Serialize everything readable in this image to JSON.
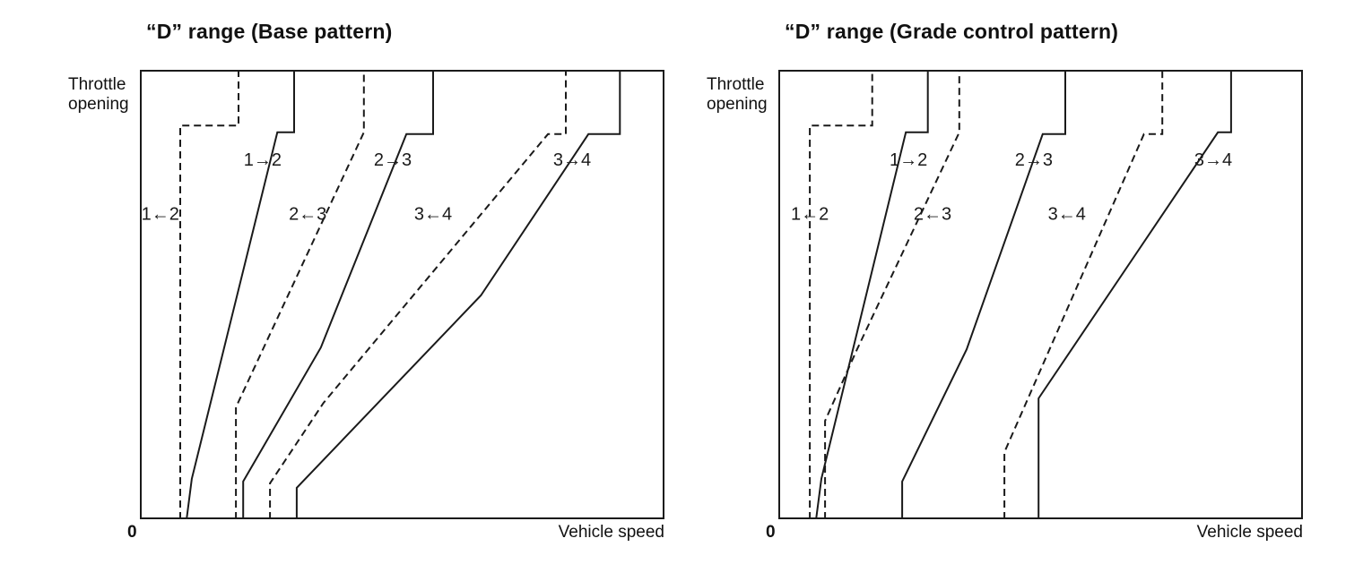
{
  "figure": {
    "description": "Automatic transmission shift schedule diagrams for D range",
    "line_color": "#1a1a1a",
    "background": "#ffffff"
  },
  "chart_data": [
    {
      "type": "line",
      "title": "“D” range (Base pattern)",
      "xlabel": "Vehicle speed",
      "ylabel": "Throttle opening",
      "origin_label": "0",
      "x_range": [
        0,
        100
      ],
      "y_range": [
        0,
        100
      ],
      "grid": false,
      "legend": "none",
      "coord_note": "points are [vehicle_speed 0-100, throttle_opening 0-100], axes unlabeled in source",
      "series": [
        {
          "id": "downshift-1-2",
          "name": "1←2 downshift",
          "style": "dashed",
          "points": [
            [
              7.7,
              0
            ],
            [
              7.7,
              87.6
            ],
            [
              18.8,
              87.6
            ],
            [
              18.8,
              100
            ]
          ]
        },
        {
          "id": "upshift-1-2",
          "name": "1→2 upshift",
          "style": "solid",
          "points": [
            [
              8.9,
              0
            ],
            [
              9.9,
              9.0
            ],
            [
              26.2,
              86.1
            ],
            [
              29.4,
              86.1
            ],
            [
              29.4,
              100
            ]
          ]
        },
        {
          "id": "downshift-2-3",
          "name": "2←3 downshift",
          "style": "dashed",
          "points": [
            [
              18.3,
              0
            ],
            [
              18.3,
              24.9
            ],
            [
              42.7,
              86.1
            ],
            [
              42.7,
              100
            ]
          ]
        },
        {
          "id": "upshift-2-3",
          "name": "2→3 upshift",
          "style": "solid",
          "points": [
            [
              19.7,
              0
            ],
            [
              19.7,
              8.4
            ],
            [
              34.5,
              38.2
            ],
            [
              50.8,
              85.7
            ],
            [
              55.9,
              85.7
            ],
            [
              55.9,
              100
            ]
          ]
        },
        {
          "id": "downshift-3-4",
          "name": "3←4 downshift",
          "style": "dashed",
          "points": [
            [
              24.8,
              0
            ],
            [
              24.8,
              8.0
            ],
            [
              35.0,
              25.9
            ],
            [
              77.8,
              85.7
            ],
            [
              81.2,
              85.7
            ],
            [
              81.2,
              100
            ]
          ]
        },
        {
          "id": "upshift-3-4",
          "name": "3→4 upshift",
          "style": "solid",
          "points": [
            [
              29.9,
              0
            ],
            [
              29.9,
              7.0
            ],
            [
              65.0,
              49.8
            ],
            [
              85.5,
              85.7
            ],
            [
              91.5,
              85.7
            ],
            [
              91.5,
              100
            ]
          ]
        }
      ],
      "annotations": [
        {
          "text": "1→2",
          "x": 23.4,
          "t": 79.7
        },
        {
          "text": "2→3",
          "x": 48.2,
          "t": 79.7
        },
        {
          "text": "3→4",
          "x": 82.4,
          "t": 79.7
        },
        {
          "text": "1←2",
          "x": 3.9,
          "t": 67.7
        },
        {
          "text": "2←3",
          "x": 32.0,
          "t": 67.7
        },
        {
          "text": "3←4",
          "x": 55.9,
          "t": 67.7
        }
      ]
    },
    {
      "type": "line",
      "title": "“D” range (Grade control pattern)",
      "xlabel": "Vehicle speed",
      "ylabel": "Throttle opening",
      "origin_label": "0",
      "x_range": [
        0,
        100
      ],
      "y_range": [
        0,
        100
      ],
      "grid": false,
      "legend": "none",
      "coord_note": "points are [vehicle_speed 0-100, throttle_opening 0-100], axes unlabeled in source",
      "series": [
        {
          "id": "downshift-1-2",
          "name": "1←2 downshift",
          "style": "dashed",
          "points": [
            [
              6.0,
              0
            ],
            [
              6.0,
              87.6
            ],
            [
              17.9,
              87.6
            ],
            [
              17.9,
              100
            ]
          ]
        },
        {
          "id": "upshift-1-2",
          "name": "1→2 upshift",
          "style": "solid",
          "points": [
            [
              7.2,
              0
            ],
            [
              8.2,
              9.0
            ],
            [
              24.3,
              86.1
            ],
            [
              28.5,
              86.1
            ],
            [
              28.5,
              100
            ]
          ]
        },
        {
          "id": "downshift-2-3",
          "name": "2←3 downshift",
          "style": "dashed",
          "points": [
            [
              8.9,
              0
            ],
            [
              8.9,
              21.9
            ],
            [
              15.0,
              37.8
            ],
            [
              34.5,
              86.1
            ],
            [
              34.5,
              100
            ]
          ]
        },
        {
          "id": "upshift-2-3",
          "name": "2→3 upshift",
          "style": "solid",
          "points": [
            [
              23.6,
              0
            ],
            [
              23.6,
              8.4
            ],
            [
              35.9,
              37.8
            ],
            [
              50.4,
              85.7
            ],
            [
              54.7,
              85.7
            ],
            [
              54.7,
              100
            ]
          ]
        },
        {
          "id": "downshift-3-4",
          "name": "3←4 downshift",
          "style": "dashed",
          "points": [
            [
              43.1,
              0
            ],
            [
              43.1,
              14.9
            ],
            [
              69.7,
              85.7
            ],
            [
              73.2,
              85.7
            ],
            [
              73.2,
              100
            ]
          ]
        },
        {
          "id": "upshift-3-4",
          "name": "3→4 upshift",
          "style": "solid",
          "points": [
            [
              49.6,
              0
            ],
            [
              49.6,
              26.9
            ],
            [
              83.8,
              86.1
            ],
            [
              86.3,
              86.1
            ],
            [
              86.3,
              100
            ]
          ]
        }
      ],
      "annotations": [
        {
          "text": "1→2",
          "x": 24.8,
          "t": 79.7
        },
        {
          "text": "2→3",
          "x": 48.7,
          "t": 79.7
        },
        {
          "text": "3→4",
          "x": 82.9,
          "t": 79.7
        },
        {
          "text": "1←2",
          "x": 6.0,
          "t": 67.7
        },
        {
          "text": "2←3",
          "x": 29.4,
          "t": 67.7
        },
        {
          "text": "3←4",
          "x": 55.0,
          "t": 67.7
        }
      ]
    }
  ]
}
